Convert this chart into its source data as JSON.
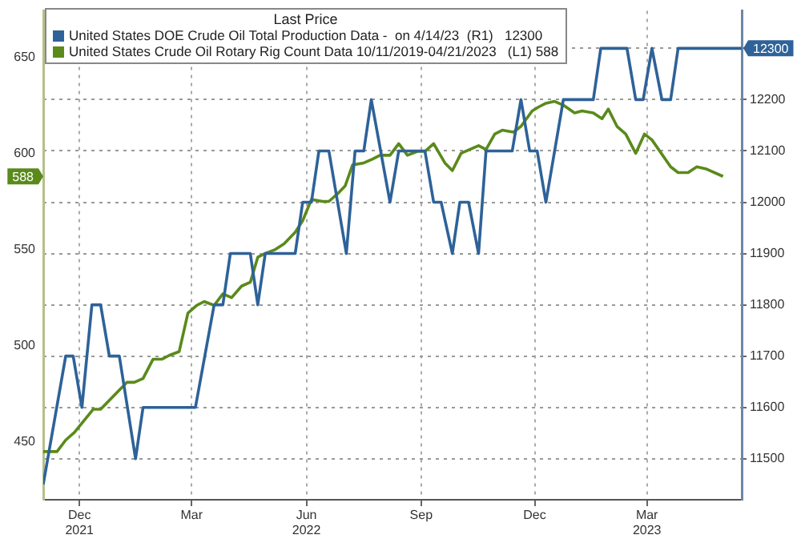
{
  "chart_data": {
    "type": "line",
    "legend_title": "Last Price",
    "legend": "top left",
    "grid": true,
    "marker": "none",
    "line_style": "solid",
    "xlim": [
      "2021-11-02",
      "2023-05-16"
    ],
    "xticks": [
      {
        "value": "2021-12-01",
        "label": "Dec\n2021"
      },
      {
        "value": "2022-03-01",
        "label": "Mar"
      },
      {
        "value": "2022-06-01",
        "label": "Jun\n2022"
      },
      {
        "value": "2022-09-01",
        "label": "Sep"
      },
      {
        "value": "2022-12-01",
        "label": "Dec"
      },
      {
        "value": "2023-03-01",
        "label": "Mar\n2023"
      }
    ],
    "ylim": [
      420,
      674
    ],
    "yticks": [
      450,
      500,
      550,
      600,
      650
    ],
    "y2lim": [
      11420,
      12373
    ],
    "y2ticks": [
      11500,
      11600,
      11700,
      11800,
      11900,
      12000,
      12100,
      12200,
      {
        "value": 12300,
        "label": null
      }
    ],
    "series": [
      {
        "name": "United States DOE Crude Oil Total Production Data -  on 4/14/23  (R1)   12300",
        "color": "#2e6299",
        "axis": "y2",
        "x": [
          "2021-11-02",
          "2021-11-20",
          "2021-11-26",
          "2021-12-03",
          "2021-12-11",
          "2021-12-18",
          "2021-12-25",
          "2022-01-02",
          "2022-01-15",
          "2022-01-21",
          "2022-03-04",
          "2022-03-19",
          "2022-03-26",
          "2022-04-01",
          "2022-04-17",
          "2022-04-23",
          "2022-04-29",
          "2022-05-23",
          "2022-05-29",
          "2022-06-05",
          "2022-06-11",
          "2022-06-19",
          "2022-07-03",
          "2022-07-10",
          "2022-07-17",
          "2022-07-23",
          "2022-08-07",
          "2022-08-14",
          "2022-09-04",
          "2022-09-11",
          "2022-09-17",
          "2022-09-26",
          "2022-10-02",
          "2022-10-09",
          "2022-10-17",
          "2022-10-23",
          "2022-11-13",
          "2022-11-20",
          "2022-11-27",
          "2022-12-03",
          "2022-12-10",
          "2022-12-24",
          "2023-01-17",
          "2023-01-23",
          "2023-02-13",
          "2023-02-20",
          "2023-02-26",
          "2023-03-05",
          "2023-03-13",
          "2023-03-20",
          "2023-03-26",
          "2023-05-16"
        ],
        "values": [
          11450,
          11700,
          11700,
          11600,
          11800,
          11800,
          11700,
          11700,
          11500,
          11600,
          11600,
          11800,
          11800,
          11900,
          11900,
          11800,
          11900,
          11900,
          12000,
          12000,
          12100,
          12100,
          11900,
          12100,
          12100,
          12200,
          12000,
          12100,
          12100,
          12000,
          12000,
          11900,
          12000,
          12000,
          11900,
          12100,
          12100,
          12200,
          12100,
          12100,
          12000,
          12200,
          12200,
          12300,
          12300,
          12200,
          12200,
          12300,
          12200,
          12200,
          12300,
          12300
        ]
      },
      {
        "name": "United States Crude Oil Rotary Rig Count Data 10/11/2019-04/21/2023   (L1) 588",
        "color": "#5a8a1a",
        "axis": "y",
        "x": [
          "2021-11-02",
          "2021-11-08",
          "2021-11-13",
          "2021-11-20",
          "2021-11-27",
          "2021-12-12",
          "2021-12-18",
          "2022-01-08",
          "2022-01-14",
          "2022-01-21",
          "2022-01-29",
          "2022-02-05",
          "2022-02-11",
          "2022-02-19",
          "2022-02-26",
          "2022-03-05",
          "2022-03-11",
          "2022-03-19",
          "2022-03-26",
          "2022-04-02",
          "2022-04-10",
          "2022-04-17",
          "2022-04-23",
          "2022-04-29",
          "2022-05-07",
          "2022-05-14",
          "2022-05-23",
          "2022-05-29",
          "2022-06-05",
          "2022-06-14",
          "2022-06-19",
          "2022-06-26",
          "2022-07-02",
          "2022-07-08",
          "2022-07-17",
          "2022-07-24",
          "2022-07-30",
          "2022-08-07",
          "2022-08-14",
          "2022-08-21",
          "2022-08-29",
          "2022-09-04",
          "2022-09-11",
          "2022-09-20",
          "2022-09-26",
          "2022-10-03",
          "2022-10-17",
          "2022-10-23",
          "2022-10-30",
          "2022-11-05",
          "2022-11-14",
          "2022-11-20",
          "2022-11-29",
          "2022-12-04",
          "2022-12-10",
          "2022-12-17",
          "2022-12-24",
          "2023-01-02",
          "2023-01-08",
          "2023-01-17",
          "2023-01-24",
          "2023-01-29",
          "2023-02-05",
          "2023-02-12",
          "2023-02-20",
          "2023-02-27",
          "2023-03-05",
          "2023-03-20",
          "2023-03-26",
          "2023-04-03",
          "2023-04-10",
          "2023-04-17",
          "2023-05-01"
        ],
        "values": [
          445,
          445,
          445,
          451,
          455,
          467,
          467,
          481,
          481,
          483,
          493,
          493,
          495,
          497,
          517,
          521,
          523,
          521,
          527,
          525,
          531,
          533,
          546,
          548,
          550,
          553,
          559,
          565,
          576,
          575,
          575,
          579,
          583,
          594,
          595,
          597,
          599,
          599,
          605,
          599,
          601,
          601,
          605,
          595,
          591,
          600,
          604,
          602,
          610,
          612,
          611,
          614,
          622,
          624,
          626,
          627,
          625,
          621,
          622,
          621,
          618,
          623,
          614,
          610,
          600,
          610,
          607,
          593,
          590,
          590,
          593,
          592,
          588
        ]
      }
    ],
    "annotations": [
      "12300",
      "588"
    ]
  }
}
